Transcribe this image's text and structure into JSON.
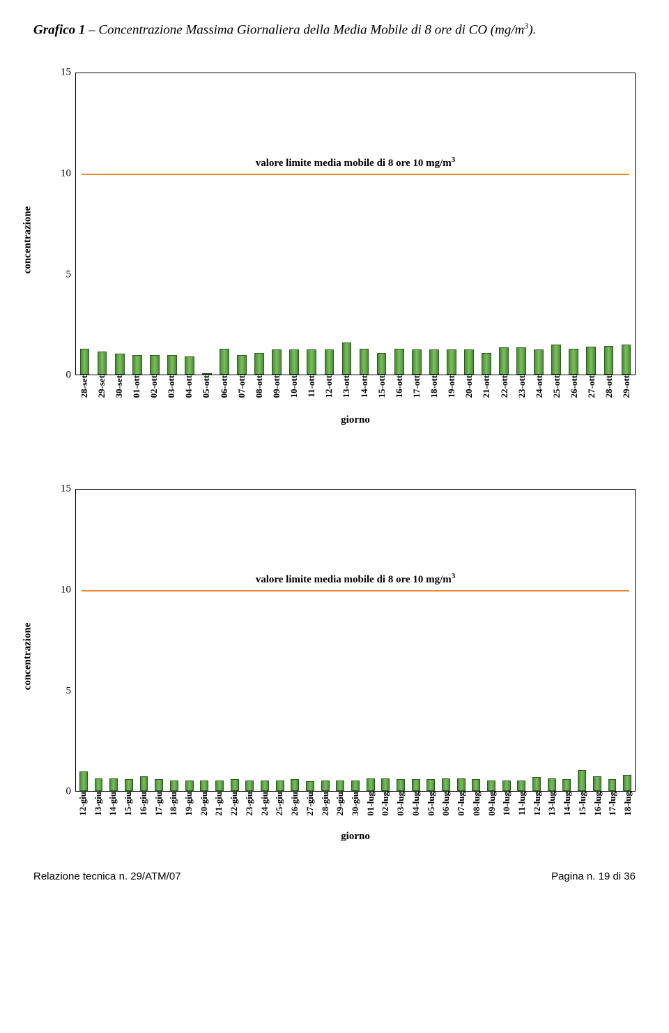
{
  "caption_lead": "Grafico 1",
  "caption_rest_a": " – Concentrazione Massima Giornaliera della Media Mobile di 8 ore di CO (mg/m",
  "caption_sup": "3",
  "caption_rest_b": ").",
  "charts": [
    {
      "type": "bar",
      "ylim": [
        0,
        15
      ],
      "yticks": [
        0,
        5,
        10,
        15
      ],
      "ylabel": "concentrazione",
      "xlabel": "giorno",
      "limit_line": {
        "y": 10,
        "color": "#e38b2a",
        "width": 2
      },
      "limit_text_a": "valore limite media mobile di 8 ore     10 mg/m",
      "limit_text_sup": "3",
      "bar_fill": "#6ab04c",
      "bar_stroke": "#2a5b1e",
      "bar_width": 0.55,
      "categories": [
        "28-set",
        "29-set",
        "30-set",
        "01-ott",
        "02-ott",
        "03-ott",
        "04-ott",
        "05-ott",
        "06-ott",
        "07-ott",
        "08-ott",
        "09-ott",
        "10-ott",
        "11-ott",
        "12-ott",
        "13-ott",
        "14-ott",
        "15-ott",
        "16-ott",
        "17-ott",
        "18-ott",
        "19-ott",
        "20-ott",
        "21-ott",
        "22-ott",
        "23-ott",
        "24-ott",
        "25-ott",
        "26-ott",
        "27-ott",
        "28-ott",
        "29-ott"
      ],
      "values": [
        1.3,
        1.15,
        1.05,
        1.0,
        1.0,
        1.0,
        0.9,
        0.0,
        1.3,
        1.0,
        1.1,
        1.25,
        1.25,
        1.25,
        1.25,
        1.6,
        1.3,
        1.1,
        1.3,
        1.25,
        1.25,
        1.25,
        1.25,
        1.1,
        1.35,
        1.35,
        1.25,
        1.5,
        1.3,
        1.4,
        1.45,
        1.5
      ]
    },
    {
      "type": "bar",
      "ylim": [
        0,
        15
      ],
      "yticks": [
        0,
        5,
        10,
        15
      ],
      "ylabel": "concentrazione",
      "xlabel": "giorno",
      "limit_line": {
        "y": 10,
        "color": "#e38b2a",
        "width": 2
      },
      "limit_text_a": "valore limite media mobile di 8 ore     10 mg/m",
      "limit_text_sup": "3",
      "bar_fill": "#6ab04c",
      "bar_stroke": "#2a5b1e",
      "bar_width": 0.55,
      "categories": [
        "12-giu",
        "13-giu",
        "14-giu",
        "15-giu",
        "16-giu",
        "17-giu",
        "18-giu",
        "19-giu",
        "20-giu",
        "21-giu",
        "22-giu",
        "23-giu",
        "24-giu",
        "25-giu",
        "26-giu",
        "27-giu",
        "28-giu",
        "29-giu",
        "30-giu",
        "01-lug",
        "02-lug",
        "03-lug",
        "04-lug",
        "05-lug",
        "06-lug",
        "07-lug",
        "08-lug",
        "09-lug",
        "10-lug",
        "11-lug",
        "12-lug",
        "13-lug",
        "14-lug",
        "15-lug",
        "16-lug",
        "17-lug",
        "18-lug"
      ],
      "values": [
        1.0,
        0.65,
        0.65,
        0.6,
        0.75,
        0.6,
        0.55,
        0.55,
        0.55,
        0.55,
        0.6,
        0.55,
        0.55,
        0.55,
        0.6,
        0.5,
        0.55,
        0.55,
        0.55,
        0.65,
        0.65,
        0.6,
        0.6,
        0.6,
        0.65,
        0.65,
        0.6,
        0.55,
        0.55,
        0.55,
        0.7,
        0.65,
        0.6,
        1.05,
        0.75,
        0.6,
        0.8
      ]
    }
  ],
  "footer_left": "Relazione tecnica n. 29/ATM/07",
  "footer_right": "Pagina n. 19 di 36"
}
